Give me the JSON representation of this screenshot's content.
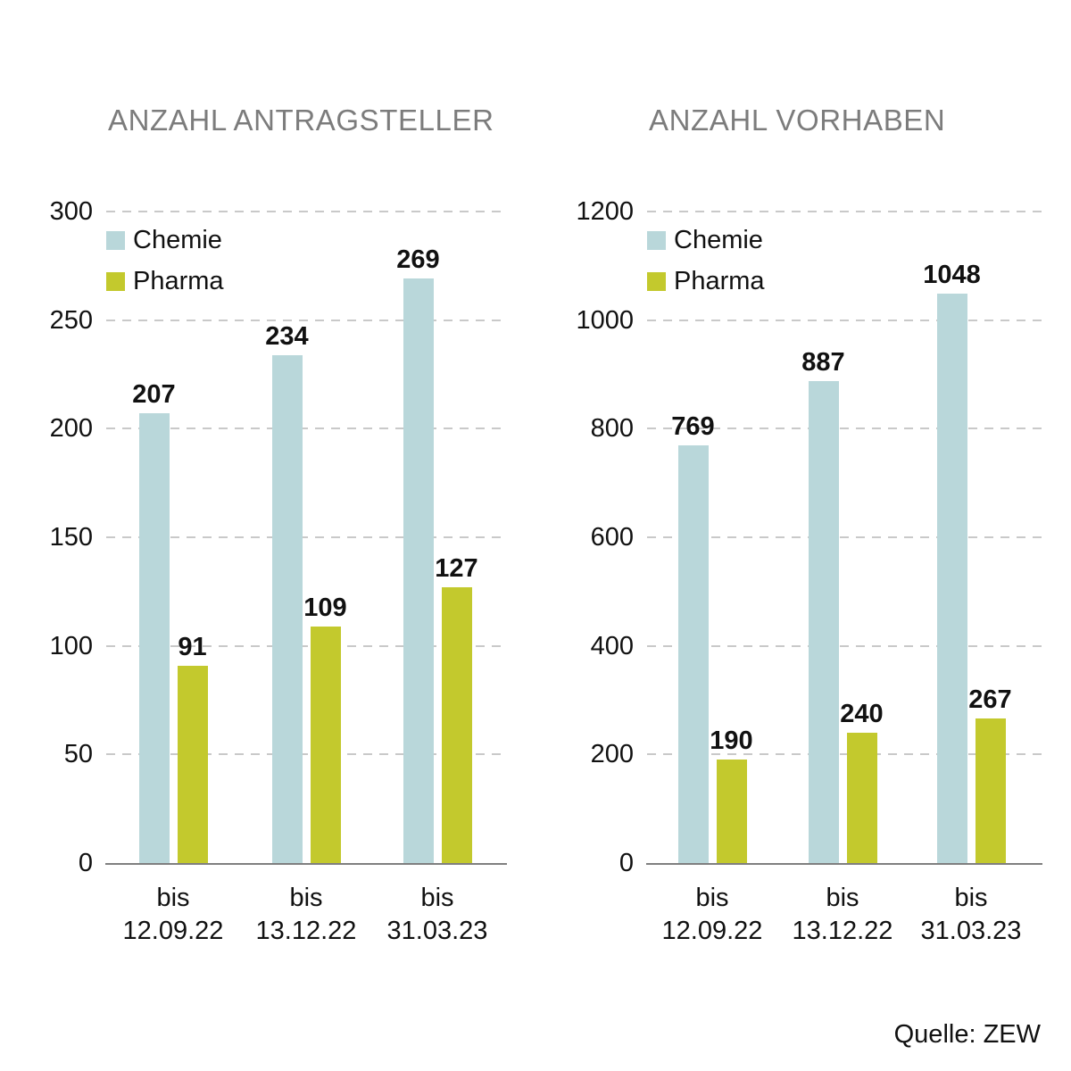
{
  "page": {
    "background": "#ffffff",
    "source_note": "Quelle: ZEW"
  },
  "colors": {
    "chemie": "#b9d7da",
    "pharma": "#c3c92d",
    "title_gray": "#7c7c7c",
    "grid_gray": "#c9c9c9",
    "axis_gray": "#7f7f7f",
    "text_dark": "#111111"
  },
  "legend": {
    "items": [
      {
        "label": "Chemie",
        "color_key": "chemie"
      },
      {
        "label": "Pharma",
        "color_key": "pharma"
      }
    ]
  },
  "chart_data": [
    {
      "type": "bar",
      "title": "ANZAHL ANTRAGSTELLER",
      "categories": [
        [
          "bis",
          "12.09.22"
        ],
        [
          "bis",
          "13.12.22"
        ],
        [
          "bis",
          "31.03.23"
        ]
      ],
      "series": [
        {
          "name": "Chemie",
          "values": [
            207,
            234,
            269
          ]
        },
        {
          "name": "Pharma",
          "values": [
            91,
            109,
            127
          ]
        }
      ],
      "ylim": [
        0,
        300
      ],
      "yticks": [
        300,
        250,
        200,
        150,
        100,
        50,
        0
      ],
      "grid": "dashed-horizontal",
      "legend_position": "top-left-inside",
      "bar_value_labels": true
    },
    {
      "type": "bar",
      "title": "ANZAHL VORHABEN",
      "categories": [
        [
          "bis",
          "12.09.22"
        ],
        [
          "bis",
          "13.12.22"
        ],
        [
          "bis",
          "31.03.23"
        ]
      ],
      "series": [
        {
          "name": "Chemie",
          "values": [
            769,
            887,
            1048
          ]
        },
        {
          "name": "Pharma",
          "values": [
            190,
            240,
            267
          ]
        }
      ],
      "ylim": [
        0,
        1200
      ],
      "yticks": [
        1200,
        1000,
        800,
        600,
        400,
        200,
        0
      ],
      "grid": "dashed-horizontal",
      "legend_position": "top-left-inside",
      "bar_value_labels": true
    }
  ]
}
